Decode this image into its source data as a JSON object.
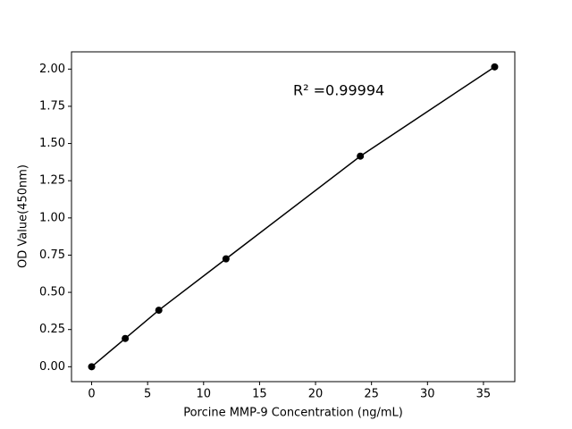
{
  "chart_data": {
    "type": "line",
    "x_label": "Porcine MMP-9 Concentration (ng/mL)",
    "y_label": "OD Value(450nm)",
    "annotation": "R² =0.99994",
    "x": [
      0,
      3,
      6,
      12,
      24,
      36
    ],
    "series": [
      {
        "color": "#000000",
        "values": [
          0,
          0.19,
          0.38,
          0.725,
          1.415,
          2.015
        ]
      }
    ],
    "xlim": [
      -1.8,
      37.8
    ],
    "ylim": [
      -0.1,
      2.116
    ],
    "xticks": [
      0,
      5,
      10,
      15,
      20,
      25,
      30,
      35
    ],
    "yticks": [
      {
        "value": 0,
        "label": "0.00"
      },
      {
        "value": 0.25,
        "label": "0.25"
      },
      {
        "value": 0.5,
        "label": "0.50"
      },
      {
        "value": 0.75,
        "label": "0.75"
      },
      {
        "value": 1,
        "label": "1.00"
      },
      {
        "value": 1.25,
        "label": "1.25"
      },
      {
        "value": 1.5,
        "label": "1.50"
      },
      {
        "value": 1.75,
        "label": "1.75"
      },
      {
        "value": 2,
        "label": "2.00"
      }
    ]
  }
}
